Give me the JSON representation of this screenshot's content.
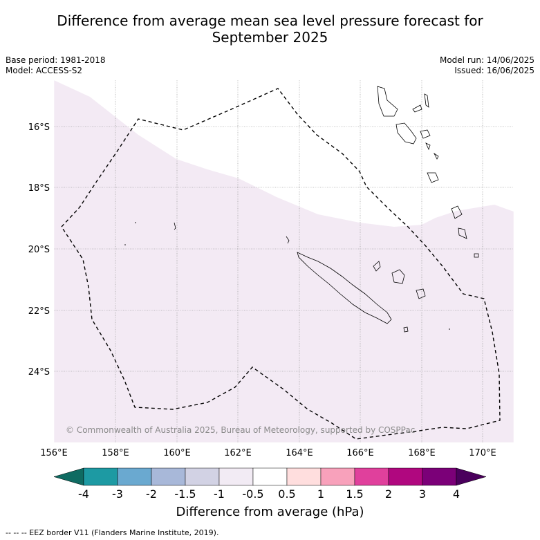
{
  "title": {
    "line1": "Difference from average mean sea level pressure forecast for",
    "line2": "September 2025"
  },
  "meta": {
    "base_period": "Base period: 1981-2018",
    "model": "Model: ACCESS-S2",
    "model_run": "Model run: 14/06/2025",
    "issued": "Issued: 16/06/2025"
  },
  "map": {
    "lon_ticks": [
      "156°E",
      "158°E",
      "160°E",
      "162°E",
      "164°E",
      "166°E",
      "168°E",
      "170°E"
    ],
    "lat_ticks": [
      "16°S",
      "18°S",
      "20°S",
      "22°S",
      "24°S"
    ],
    "copyright": "© Commonwealth of Australia 2025, Bureau of Meteorology, supported by COSPPac",
    "shading_color": "#f3eaf4",
    "eez_line_color": "#000000",
    "extent": {
      "lon_min": 156,
      "lon_max": 171,
      "lat_north": -14.5,
      "lat_south": -26.3
    }
  },
  "colorbar": {
    "labels": [
      "-4",
      "-3",
      "-2",
      "-1.5",
      "-1",
      "-0.5",
      "0.5",
      "1",
      "1.5",
      "2",
      "3",
      "4"
    ],
    "colors": [
      "#0f6b62",
      "#1d9aa3",
      "#6aa9d0",
      "#a8b8d9",
      "#d2d2e4",
      "#f2ebf4",
      "#ffffff",
      "#ffdede",
      "#f8a1bb",
      "#e0409c",
      "#b0077f",
      "#7b0078",
      "#4a005c"
    ],
    "title": "Difference from average (hPa)"
  },
  "footer": "--  --  -- EEZ border V11 (Flanders Marine Institute, 2019)."
}
